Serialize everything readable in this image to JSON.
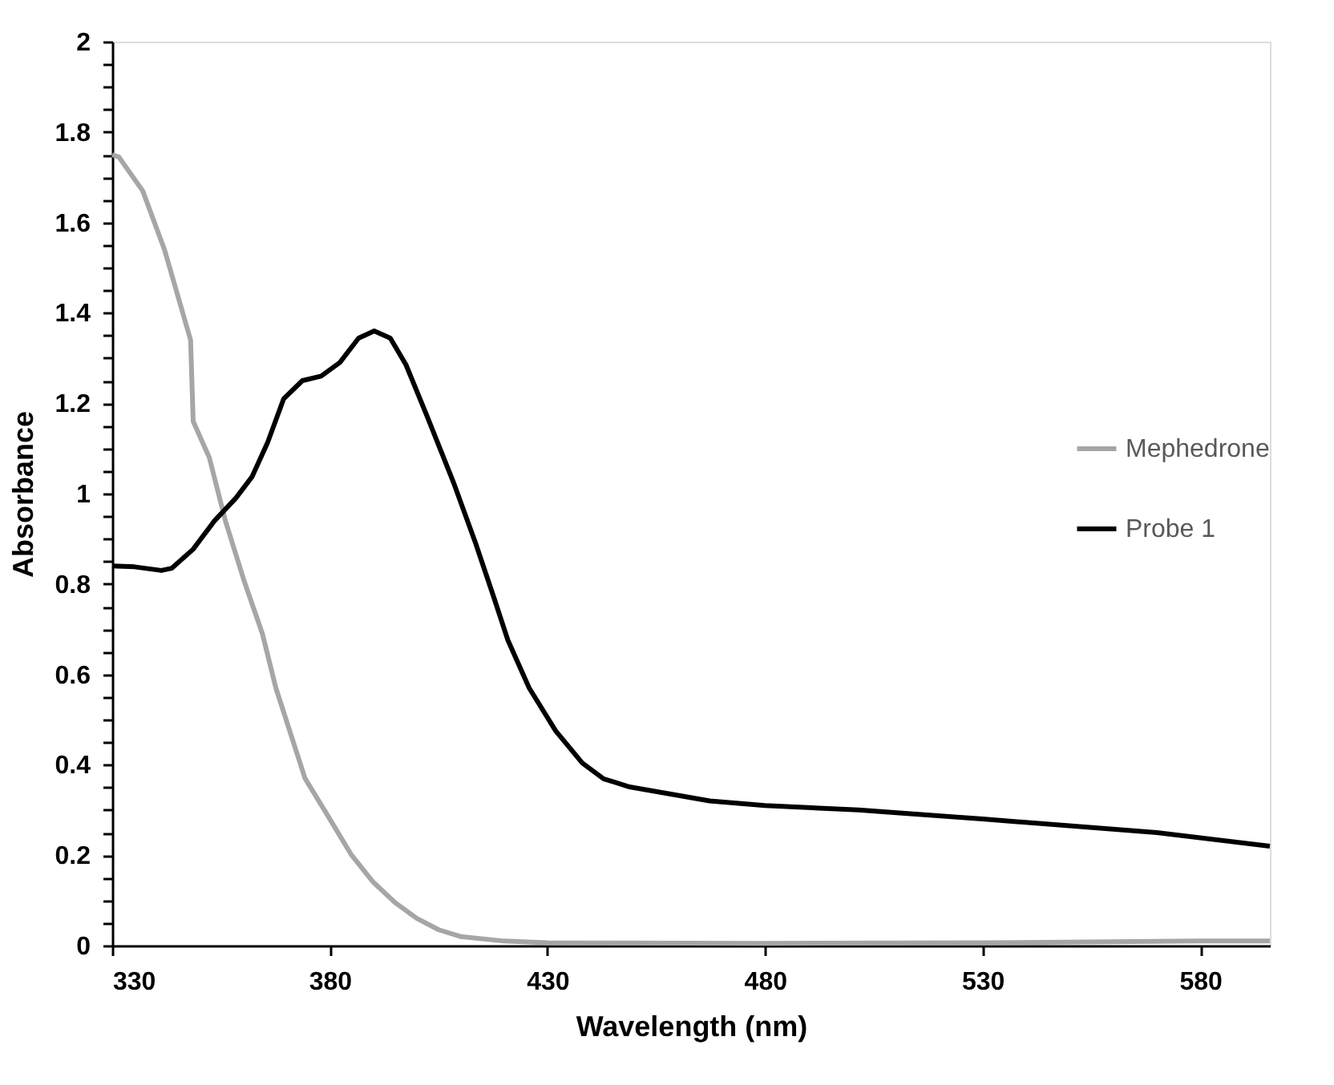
{
  "chart_data": {
    "type": "line",
    "xlabel": "Wavelength (nm)",
    "ylabel": "Absorbance",
    "xlim": [
      330,
      596
    ],
    "xticks": [
      330,
      380,
      430,
      480,
      530,
      580
    ],
    "ylim": [
      0,
      2
    ],
    "yticks": [
      0,
      {
        "value": 0.05,
        "label": null
      },
      0.2,
      {
        "value": 0.1,
        "label": null
      },
      {
        "value": 0.15,
        "label": null
      },
      {
        "value": 0.25,
        "label": null
      },
      {
        "value": 0.3,
        "label": null
      },
      {
        "value": 0.35,
        "label": null
      },
      0.4,
      {
        "value": 0.45,
        "label": null
      },
      {
        "value": 0.5,
        "label": null
      },
      {
        "value": 0.55,
        "label": null
      },
      0.6,
      {
        "value": 0.65,
        "label": null
      },
      {
        "value": 0.7,
        "label": null
      },
      {
        "value": 0.75,
        "label": null
      },
      0.8,
      {
        "value": 0.85,
        "label": null
      },
      {
        "value": 0.9,
        "label": null
      },
      {
        "value": 0.95,
        "label": null
      },
      1,
      {
        "value": 1.05,
        "label": null
      },
      {
        "value": 1.1,
        "label": null
      },
      {
        "value": 1.15,
        "label": null
      },
      1.2,
      {
        "value": 1.25,
        "label": null
      },
      {
        "value": 1.3,
        "label": null
      },
      {
        "value": 1.35,
        "label": null
      },
      1.4,
      {
        "value": 1.45,
        "label": null
      },
      {
        "value": 1.5,
        "label": null
      },
      {
        "value": 1.55,
        "label": null
      },
      1.6,
      {
        "value": 1.65,
        "label": null
      },
      {
        "value": 1.7,
        "label": null
      },
      {
        "value": 1.75,
        "label": null
      },
      1.8,
      {
        "value": 1.85,
        "label": null
      },
      {
        "value": 1.9,
        "label": null
      },
      {
        "value": 1.95,
        "label": null
      },
      2
    ],
    "grid": false,
    "legend": "right",
    "marker": "none",
    "line_style": "solid",
    "series": [
      {
        "name": "Mephedrone",
        "color": "#a6a6a6",
        "x": [
          330,
          331.5,
          337,
          342,
          347.4,
          348,
          348.6,
          352.3,
          356,
          360.2,
          364.5,
          367.6,
          374.3,
          380,
          385,
          390,
          395,
          400,
          405,
          410,
          420,
          430,
          480,
          530,
          580,
          596
        ],
        "values": [
          1.75,
          1.745,
          1.67,
          1.54,
          1.36,
          1.34,
          1.16,
          1.08,
          0.94,
          0.81,
          0.69,
          0.57,
          0.37,
          0.28,
          0.2,
          0.14,
          0.095,
          0.06,
          0.035,
          0.02,
          0.01,
          0.006,
          0.005,
          0.006,
          0.01,
          0.01
        ]
      },
      {
        "name": "Probe 1",
        "color": "#000000",
        "x": [
          330,
          335.1,
          341.3,
          343.7,
          348.6,
          353.5,
          358.4,
          362.1,
          365.7,
          369.4,
          373.7,
          378,
          382.3,
          386.6,
          390.2,
          393.9,
          397.5,
          402.4,
          408.6,
          413.5,
          417.7,
          420.9,
          425.8,
          431.9,
          438,
          442.9,
          448.9,
          467.3,
          480,
          501.5,
          530,
          570,
          596
        ],
        "values": [
          0.84,
          0.838,
          0.83,
          0.835,
          0.877,
          0.94,
          0.99,
          1.037,
          1.113,
          1.21,
          1.25,
          1.26,
          1.29,
          1.344,
          1.36,
          1.344,
          1.285,
          1.17,
          1.02,
          0.89,
          0.77,
          0.676,
          0.57,
          0.475,
          0.404,
          0.369,
          0.351,
          0.32,
          0.31,
          0.3,
          0.28,
          0.25,
          0.22
        ]
      }
    ]
  }
}
